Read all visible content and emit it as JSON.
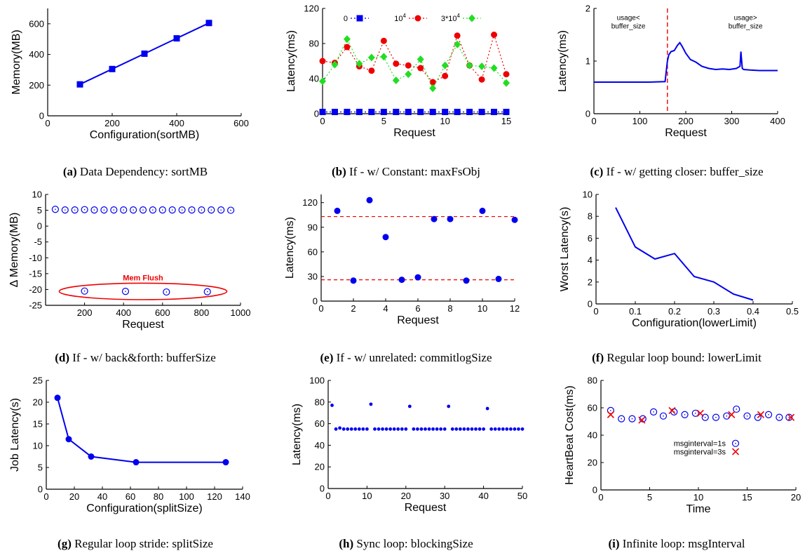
{
  "chart_data": [
    {
      "id": "a",
      "type": "line",
      "caption_letter": "(a)",
      "caption": "Data Dependency: sortMB",
      "xlabel": "Configuration(sortMB)",
      "ylabel": "Memory(MB)",
      "xlim": [
        0,
        600
      ],
      "ylim": [
        0,
        700
      ],
      "xticks": [
        0,
        200,
        400,
        600
      ],
      "yticks": [
        0,
        200,
        400,
        600
      ],
      "series": [
        {
          "x": [
            100,
            200,
            300,
            400,
            500
          ],
          "y": [
            205,
            305,
            405,
            505,
            605
          ],
          "color": "#0000ee",
          "marker": "square",
          "line": "solid"
        }
      ]
    },
    {
      "id": "b",
      "type": "line",
      "caption_letter": "(b)",
      "caption": "If - w/ Constant: maxFsObj",
      "xlabel": "Request",
      "ylabel": "Latency(ms)",
      "xlim": [
        0,
        15
      ],
      "ylim": [
        0,
        120
      ],
      "xticks": [
        0,
        5,
        10,
        15
      ],
      "yticks": [
        0,
        40,
        80,
        120
      ],
      "series": [
        {
          "name": "0",
          "x": [
            0,
            1,
            2,
            3,
            4,
            5,
            6,
            7,
            8,
            9,
            10,
            11,
            12,
            13,
            14,
            15
          ],
          "y": [
            2,
            2,
            2,
            2,
            2,
            2,
            2,
            2,
            2,
            2,
            2,
            2,
            2,
            2,
            2,
            2
          ],
          "color": "#0000ee",
          "marker": "square",
          "line": "dotted"
        },
        {
          "name": "10^4",
          "x": [
            0,
            1,
            2,
            3,
            4,
            5,
            6,
            7,
            8,
            9,
            10,
            11,
            12,
            13,
            14,
            15
          ],
          "y": [
            60,
            58,
            76,
            54,
            49,
            83,
            57,
            55,
            52,
            36,
            43,
            89,
            55,
            39,
            90,
            45
          ],
          "color": "#ee0000",
          "marker": "circle",
          "line": "dotted"
        },
        {
          "name": "3*10^4",
          "x": [
            0,
            1,
            2,
            3,
            4,
            5,
            6,
            7,
            8,
            9,
            10,
            11,
            12,
            13,
            14,
            15
          ],
          "y": [
            37,
            56,
            85,
            57,
            64,
            65,
            38,
            45,
            62,
            29,
            55,
            79,
            55,
            54,
            52,
            35
          ],
          "color": "#22dd22",
          "marker": "diamond",
          "line": "dotted"
        }
      ],
      "legend": [
        {
          "label": "0",
          "sup": ""
        },
        {
          "label": "10",
          "sup": "4"
        },
        {
          "label": "3*10",
          "sup": "4"
        }
      ]
    },
    {
      "id": "c",
      "type": "line",
      "caption_letter": "(c)",
      "caption": "If - w/ getting closer: buffer_size",
      "xlabel": "Request",
      "ylabel": "Latency(ms)",
      "xlim": [
        0,
        400
      ],
      "ylim": [
        0,
        2
      ],
      "xticks": [
        0,
        100,
        200,
        300,
        400
      ],
      "yticks": [
        0,
        1,
        2
      ],
      "vline": 160,
      "annotations": [
        {
          "lines": [
            "usage<",
            "buffer_size"
          ],
          "x": 75,
          "y": 1.78
        },
        {
          "lines": [
            "usage>",
            "buffer_size"
          ],
          "x": 330,
          "y": 1.78
        }
      ],
      "series": [
        {
          "x": [
            0,
            40,
            80,
            120,
            155,
            158,
            160,
            163,
            168,
            175,
            182,
            187,
            192,
            200,
            210,
            222,
            235,
            250,
            265,
            280,
            295,
            310,
            318,
            320,
            323,
            326,
            340,
            360,
            380,
            400
          ],
          "y": [
            0.6,
            0.6,
            0.6,
            0.6,
            0.61,
            0.85,
            1.0,
            1.12,
            1.18,
            1.2,
            1.3,
            1.35,
            1.28,
            1.15,
            1.03,
            0.98,
            0.9,
            0.86,
            0.84,
            0.85,
            0.84,
            0.86,
            0.9,
            1.18,
            0.86,
            0.84,
            0.83,
            0.82,
            0.82,
            0.82
          ],
          "color": "#0000ee",
          "marker": "none",
          "line": "solid"
        }
      ]
    },
    {
      "id": "d",
      "type": "scatter",
      "caption_letter": "(d)",
      "caption": "If - w/ back&forth: bufferSize",
      "xlabel": "Request",
      "ylabel": "Δ Memory(MB)",
      "xlim": [
        0,
        1000
      ],
      "ylim": [
        -25,
        10
      ],
      "xticks": [
        200,
        400,
        600,
        800,
        1000
      ],
      "yticks": [
        10,
        5,
        0,
        -5,
        -10,
        -15,
        -20,
        -25
      ],
      "ellipse": {
        "label": "Mem Flush",
        "cx": 500,
        "cy": -20.6,
        "rx": 430,
        "ry": 2.6
      },
      "series": [
        {
          "x": [
            50,
            100,
            150,
            200,
            250,
            300,
            350,
            400,
            450,
            500,
            550,
            600,
            650,
            700,
            750,
            800,
            850,
            900,
            950,
            200,
            410,
            620,
            830
          ],
          "y": [
            5.3,
            5.1,
            5.1,
            5.2,
            5.1,
            5.1,
            5.1,
            5.1,
            5.1,
            5.1,
            5.1,
            5.1,
            5.1,
            5.1,
            5.1,
            5.1,
            5.1,
            5.1,
            5.0,
            -20.5,
            -20.6,
            -20.8,
            -20.7
          ],
          "color": "#0000ee",
          "marker": "open-circle",
          "line": "none"
        }
      ]
    },
    {
      "id": "e",
      "type": "scatter",
      "caption_letter": "(e)",
      "caption": "If - w/ unrelated: commitlogSize",
      "xlabel": "Request",
      "ylabel": "Latency(ms)",
      "xlim": [
        0,
        12
      ],
      "ylim": [
        0,
        130
      ],
      "xticks": [
        0,
        2,
        4,
        6,
        8,
        10,
        12
      ],
      "yticks": [
        0,
        30,
        60,
        90,
        120
      ],
      "hlines": [
        103,
        26
      ],
      "series": [
        {
          "x": [
            1,
            2,
            3,
            4,
            5,
            6,
            7,
            8,
            9,
            10,
            11,
            12
          ],
          "y": [
            110,
            25,
            123,
            78,
            26,
            29,
            100,
            100,
            25,
            110,
            27,
            99
          ],
          "color": "#0000ee",
          "marker": "circle",
          "line": "none"
        }
      ]
    },
    {
      "id": "f",
      "type": "line",
      "caption_letter": "(f)",
      "caption": "Regular loop bound: lowerLimit",
      "xlabel": "Configuration(lowerLimit)",
      "ylabel": "Worst Latency(s)",
      "xlim": [
        0,
        0.5
      ],
      "ylim": [
        0,
        10
      ],
      "xticks": [
        0,
        0.1,
        0.2,
        0.3,
        0.4,
        0.5
      ],
      "yticks": [
        0,
        2,
        4,
        6,
        8,
        10
      ],
      "series": [
        {
          "x": [
            0.05,
            0.1,
            0.15,
            0.2,
            0.25,
            0.3,
            0.35,
            0.4
          ],
          "y": [
            8.8,
            5.2,
            4.1,
            4.6,
            2.5,
            2.0,
            0.9,
            0.35
          ],
          "color": "#0000ee",
          "marker": "none",
          "line": "solid"
        }
      ]
    },
    {
      "id": "g",
      "type": "line",
      "caption_letter": "(g)",
      "caption": "Regular loop stride: splitSize",
      "xlabel": "Configuration(splitSize)",
      "ylabel": "Job Latency(s)",
      "xlim": [
        0,
        140
      ],
      "ylim": [
        0,
        25
      ],
      "xticks": [
        0,
        20,
        40,
        60,
        80,
        100,
        120,
        140
      ],
      "yticks": [
        0,
        5,
        10,
        15,
        20,
        25
      ],
      "series": [
        {
          "x": [
            8,
            16,
            32,
            64,
            128
          ],
          "y": [
            21,
            11.5,
            7.5,
            6.2,
            6.2
          ],
          "color": "#0000ee",
          "marker": "circle",
          "line": "solid"
        }
      ]
    },
    {
      "id": "h",
      "type": "scatter",
      "caption_letter": "(h)",
      "caption": "Sync loop: blockingSize",
      "xlabel": "Request",
      "ylabel": "Latency(ms)",
      "xlim": [
        0,
        50
      ],
      "ylim": [
        0,
        100
      ],
      "xticks": [
        0,
        10,
        20,
        30,
        40,
        50
      ],
      "yticks": [
        0,
        20,
        40,
        60,
        80,
        100
      ],
      "series": [
        {
          "x": [
            1,
            2,
            3,
            4,
            5,
            6,
            7,
            8,
            9,
            10,
            11,
            12,
            13,
            14,
            15,
            16,
            17,
            18,
            19,
            20,
            21,
            22,
            23,
            24,
            25,
            26,
            27,
            28,
            29,
            30,
            31,
            32,
            33,
            34,
            35,
            36,
            37,
            38,
            39,
            40,
            41,
            42,
            43,
            44,
            45,
            46,
            47,
            48,
            49,
            50
          ],
          "y": [
            77,
            55,
            56,
            55,
            55,
            55,
            55,
            55,
            55,
            55,
            78,
            55,
            55,
            55,
            55,
            55,
            55,
            55,
            55,
            55,
            76,
            55,
            55,
            55,
            55,
            55,
            55,
            55,
            55,
            55,
            76,
            55,
            55,
            55,
            55,
            55,
            55,
            55,
            55,
            55,
            74,
            55,
            55,
            55,
            55,
            55,
            55,
            55,
            55,
            55
          ],
          "color": "#0000ee",
          "marker": "small-dot",
          "line": "none"
        }
      ]
    },
    {
      "id": "i",
      "type": "scatter",
      "caption_letter": "(i)",
      "caption": "Infinite loop: msgInterval",
      "xlabel": "Time",
      "ylabel": "HeartBeat Cost(ms)",
      "xlim": [
        0,
        20
      ],
      "ylim": [
        0,
        80
      ],
      "xticks": [
        0,
        5,
        10,
        15,
        20
      ],
      "yticks": [
        0,
        20,
        40,
        60,
        80
      ],
      "legend": [
        {
          "label": "msginterval=1s",
          "sup": ""
        },
        {
          "label": "msginterval=3s",
          "sup": ""
        }
      ],
      "series": [
        {
          "name": "msginterval=1s",
          "x": [
            1,
            2.1,
            3.2,
            4.3,
            5.4,
            6.4,
            7.5,
            8.6,
            9.7,
            10.7,
            11.8,
            12.9,
            13.9,
            15,
            16.1,
            17.2,
            18.3,
            19.3
          ],
          "y": [
            58,
            52,
            52,
            52,
            57,
            54,
            57,
            55,
            56,
            53,
            53,
            54,
            59,
            54,
            53,
            55,
            53,
            53
          ],
          "color": "#0000ee",
          "marker": "open-circle",
          "line": "none"
        },
        {
          "name": "msginterval=3s",
          "x": [
            1,
            4.2,
            7.3,
            10.2,
            13.4,
            16.4,
            19.5
          ],
          "y": [
            55,
            51,
            58,
            56,
            55,
            55,
            53
          ],
          "color": "#ee0000",
          "marker": "cross",
          "line": "none"
        }
      ]
    }
  ]
}
